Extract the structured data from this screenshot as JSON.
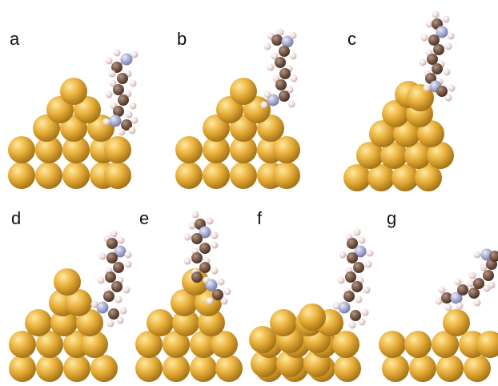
{
  "panels": [
    {
      "id": "a",
      "label": "a"
    },
    {
      "id": "b",
      "label": "b"
    },
    {
      "id": "c",
      "label": "c"
    },
    {
      "id": "d",
      "label": "d"
    },
    {
      "id": "e",
      "label": "e"
    },
    {
      "id": "f",
      "label": "f"
    },
    {
      "id": "g",
      "label": "g"
    }
  ],
  "colors": {
    "gold_light": "#ffe9a0",
    "gold": "#e9b13c",
    "gold_dark": "#9c6a10",
    "carbon_light": "#b39788",
    "carbon": "#7a5a48",
    "carbon_dark": "#3f2a20",
    "nitrogen_light": "#ececff",
    "nitrogen": "#aab0d4",
    "nitrogen_dark": "#6e73a0",
    "hydrogen_light": "#ffffff",
    "hydrogen": "#f1dcdc",
    "hydrogen_dark": "#b9a0a0"
  }
}
